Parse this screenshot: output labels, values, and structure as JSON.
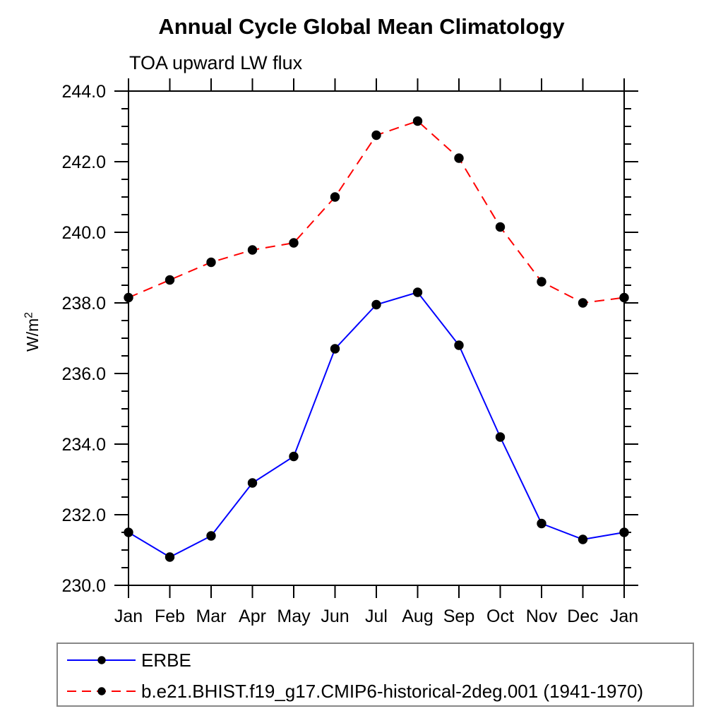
{
  "chart_data": {
    "type": "line",
    "title": "Annual Cycle Global Mean Climatology",
    "subtitle": "TOA upward LW flux",
    "ylabel": "W/m²",
    "ylabel_base": "W/m",
    "ylabel_exponent": "2",
    "x_categories": [
      "Jan",
      "Feb",
      "Mar",
      "Apr",
      "May",
      "Jun",
      "Jul",
      "Aug",
      "Sep",
      "Oct",
      "Nov",
      "Dec",
      "Jan"
    ],
    "ylim": [
      230.0,
      244.0
    ],
    "ytick_major_step": 2.0,
    "ytick_minor_step": 0.5,
    "ytick_label_format": "one-decimal",
    "grid": false,
    "axis_color": "#000000",
    "marker_color": "#000000",
    "legend_position": "bottom-left",
    "series": [
      {
        "name": "ERBE",
        "color": "#0000ff",
        "line_style": "solid",
        "marker": "filled-circle",
        "values": [
          231.5,
          230.8,
          231.4,
          232.9,
          233.65,
          236.7,
          237.95,
          238.3,
          236.8,
          234.2,
          231.75,
          231.3,
          231.5
        ]
      },
      {
        "name": "b.e21.BHIST.f19_g17.CMIP6-historical-2deg.001 (1941-1970)",
        "color": "#ff0000",
        "line_style": "dashed",
        "marker": "filled-circle",
        "values": [
          238.15,
          238.65,
          239.15,
          239.5,
          239.7,
          241.0,
          242.75,
          243.15,
          242.1,
          240.15,
          238.6,
          238.0,
          238.15
        ]
      }
    ]
  }
}
